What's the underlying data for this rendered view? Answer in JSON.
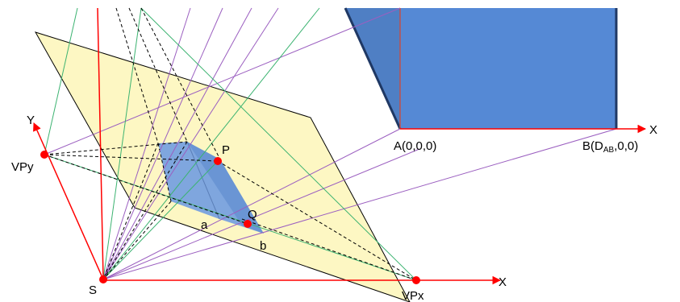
{
  "diagram": {
    "labels": {
      "y_axis": "Y",
      "x_axis_right": "X",
      "x_axis_bottom": "X",
      "vanishing_y": "VPy",
      "vanishing_x": "VPx",
      "station": "S",
      "point_p": "P",
      "point_q": "Q",
      "point_a": "a",
      "point_b": "b",
      "point_A": "A(0,0,0)",
      "point_B_prefix": "B(D",
      "point_B_sub": "AB",
      "point_B_suffix": ",0,0)"
    },
    "colors": {
      "picture_plane_fill": "#fdf7c3",
      "picture_plane_stroke": "#000000",
      "box_front": "#5589d5",
      "box_side": "#4f7fc4",
      "box_edge": "#1f3864",
      "projected_face": "#7fa6de",
      "axis_red": "#ff0000",
      "ray_purple": "#9b5fc0",
      "ray_green": "#3cb371",
      "dashed_black": "#000000",
      "point_red": "#ff0000"
    }
  }
}
